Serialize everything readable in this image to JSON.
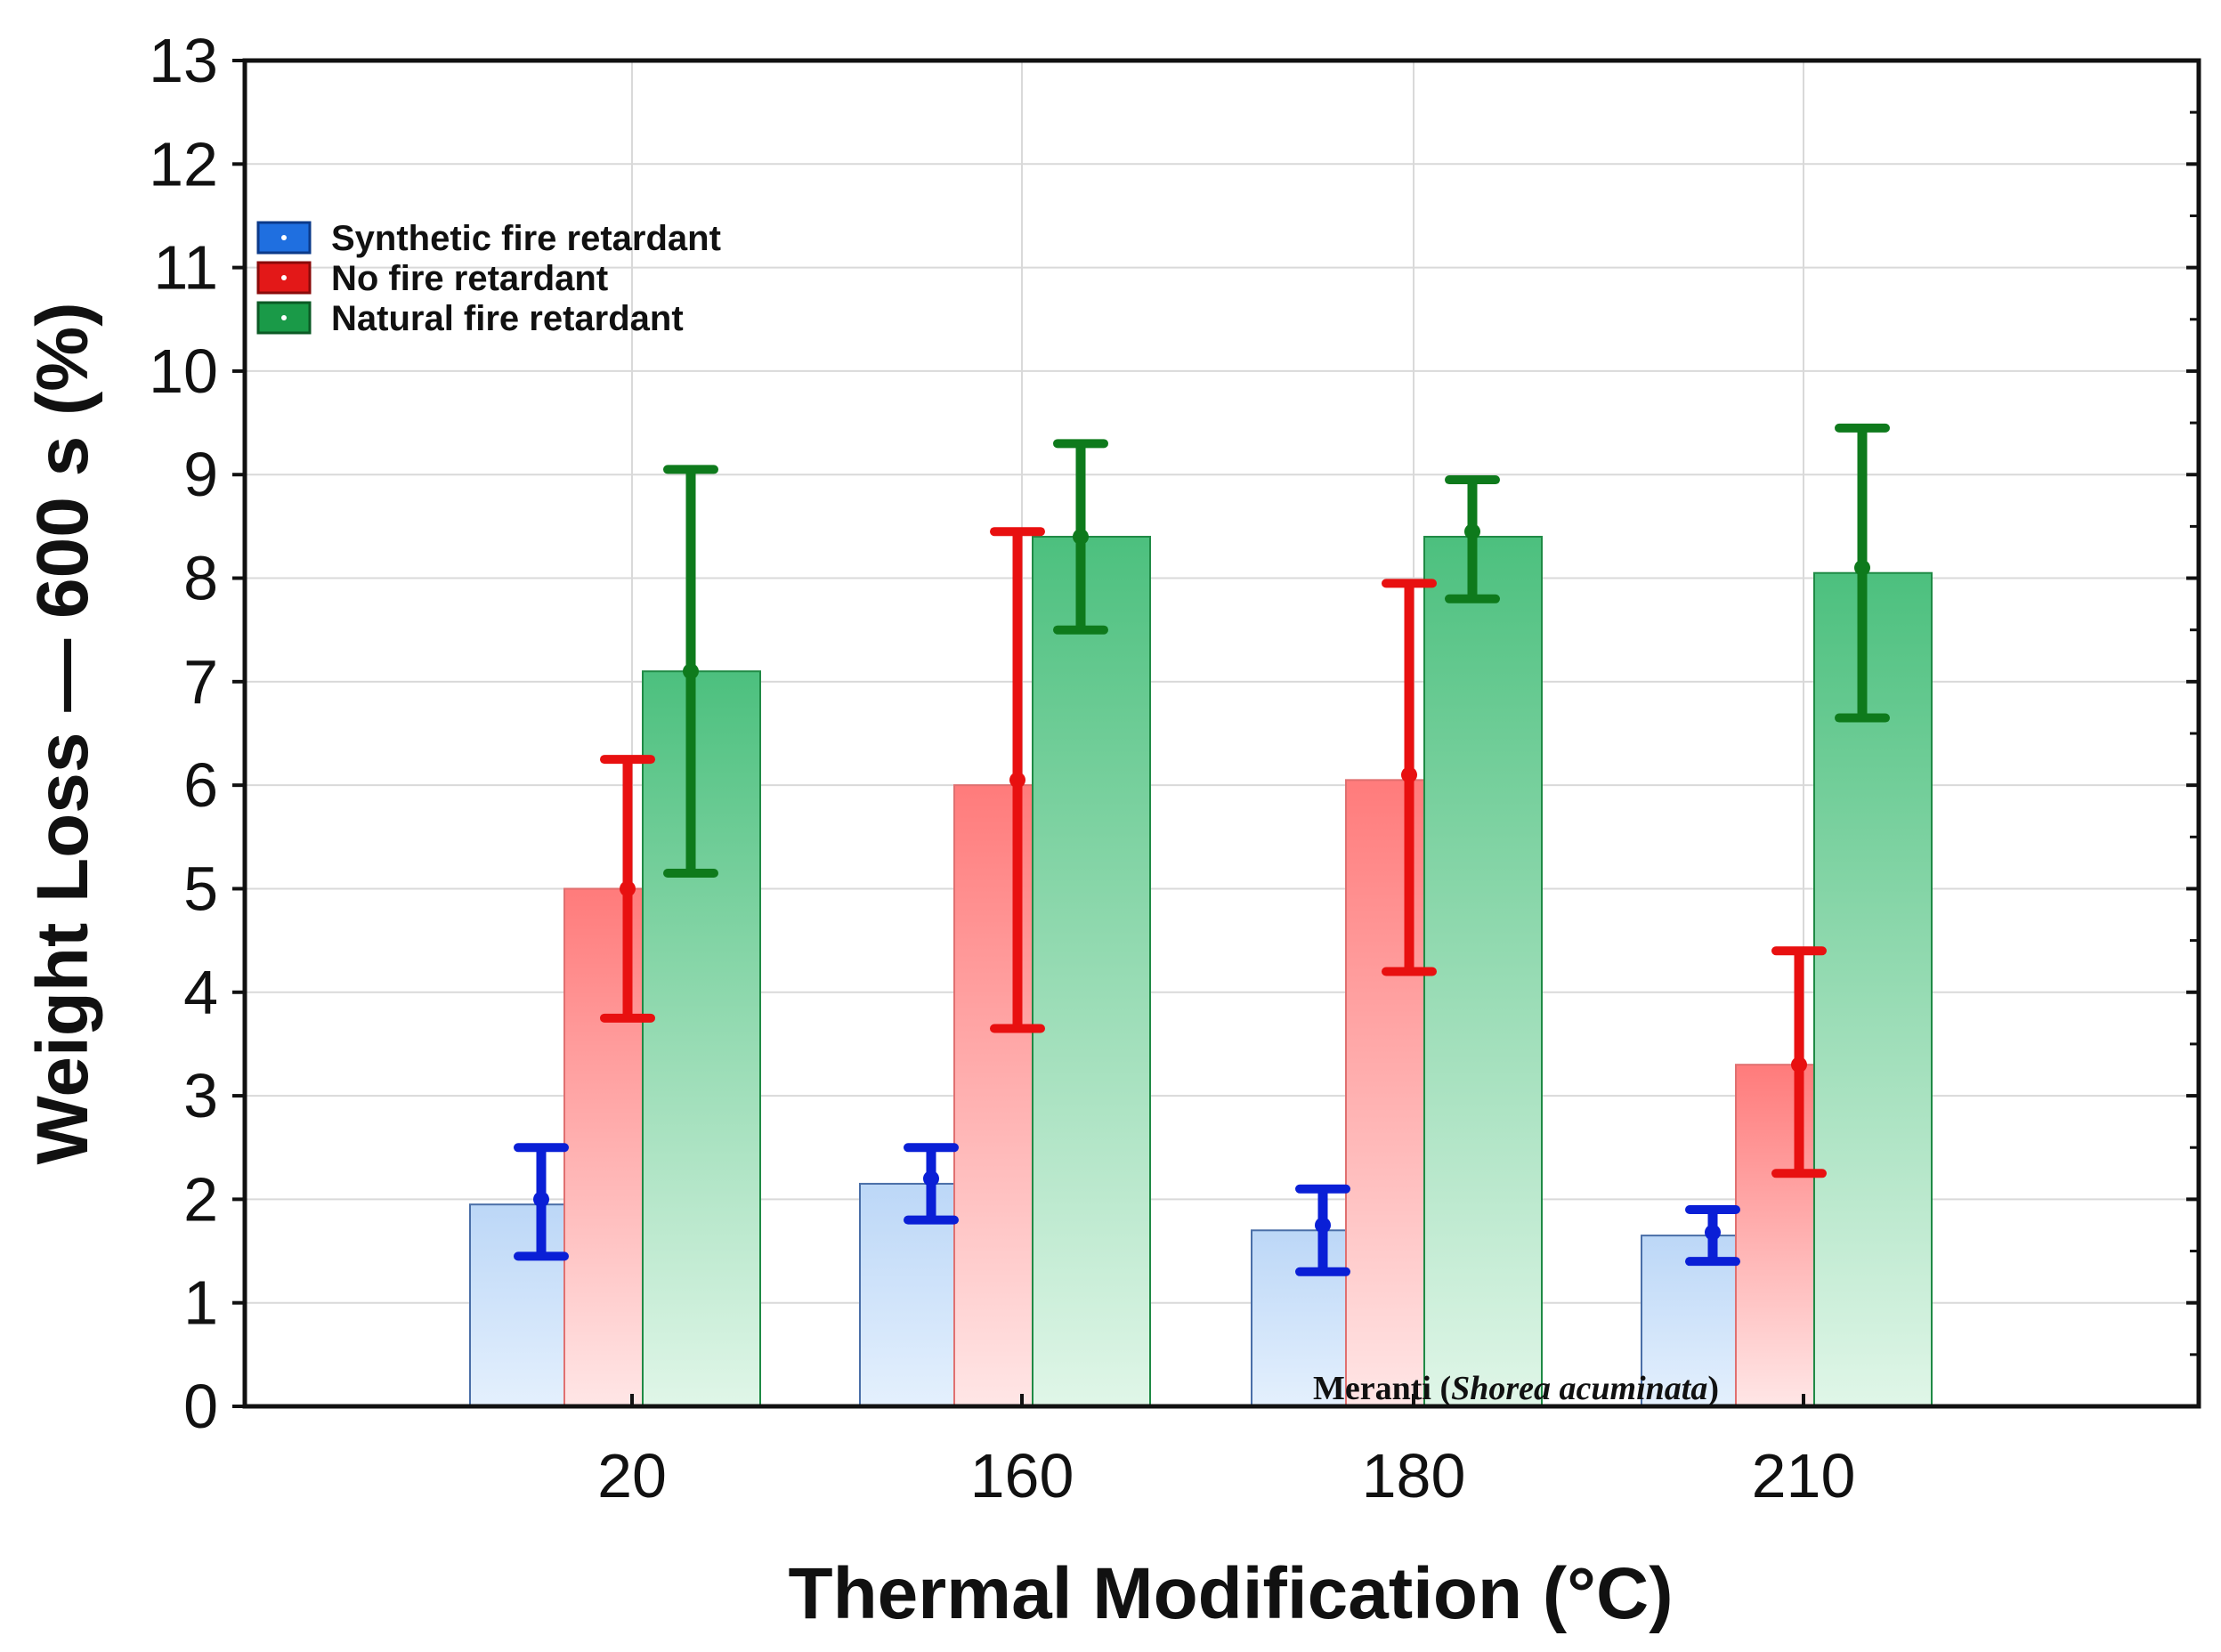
{
  "chart_data": {
    "type": "bar",
    "title": "",
    "xlabel": "Thermal Modification (°C)",
    "ylabel": "Weight Loss — 600 s (%)",
    "ylim": [
      0,
      13
    ],
    "yticks": [
      "0",
      "1",
      "2",
      "3",
      "4",
      "5",
      "6",
      "7",
      "8",
      "9",
      "10",
      "11",
      "12",
      "13"
    ],
    "categories": [
      "20",
      "160",
      "180",
      "210"
    ],
    "grid": true,
    "legend_position": "top-left",
    "annotation": {
      "text_regular": "Meranti (",
      "text_italic": "Shorea acuminata",
      "text_close": ")"
    },
    "series": [
      {
        "name": "Synthetic fire retardant",
        "color": "#1f6fe0",
        "errorbar_color": "#0a1fd6",
        "values": [
          1.95,
          2.15,
          1.7,
          1.65
        ],
        "means": [
          2.0,
          2.2,
          1.75,
          1.68
        ],
        "err_low": [
          1.45,
          1.8,
          1.3,
          1.4
        ],
        "err_high": [
          2.5,
          2.5,
          2.1,
          1.9
        ]
      },
      {
        "name": "No fire retardant",
        "color": "#e02020",
        "errorbar_color": "#e81010",
        "values": [
          5.0,
          6.0,
          6.05,
          3.3
        ],
        "means": [
          5.0,
          6.05,
          6.1,
          3.3
        ],
        "err_low": [
          3.75,
          3.65,
          4.2,
          2.25
        ],
        "err_high": [
          6.25,
          8.45,
          7.95,
          4.4
        ]
      },
      {
        "name": "Natural fire retardant",
        "color": "#1a9a48",
        "errorbar_color": "#0e7a1c",
        "values": [
          7.1,
          8.4,
          8.4,
          8.05
        ],
        "means": [
          7.1,
          8.4,
          8.45,
          8.1
        ],
        "err_low": [
          5.15,
          7.5,
          7.8,
          6.65
        ],
        "err_high": [
          9.05,
          9.3,
          8.95,
          9.45
        ]
      }
    ]
  }
}
